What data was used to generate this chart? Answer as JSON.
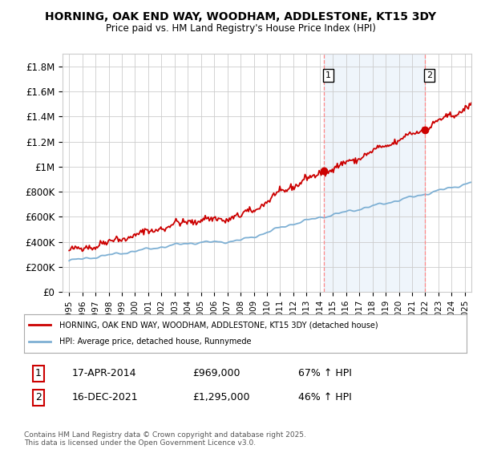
{
  "title": "HORNING, OAK END WAY, WOODHAM, ADDLESTONE, KT15 3DY",
  "subtitle": "Price paid vs. HM Land Registry's House Price Index (HPI)",
  "ylabel_ticks": [
    "£0",
    "£200K",
    "£400K",
    "£600K",
    "£800K",
    "£1M",
    "£1.2M",
    "£1.4M",
    "£1.6M",
    "£1.8M"
  ],
  "ytick_values": [
    0,
    200000,
    400000,
    600000,
    800000,
    1000000,
    1200000,
    1400000,
    1600000,
    1800000
  ],
  "ylim": [
    0,
    1900000
  ],
  "xlim_start": 1994.5,
  "xlim_end": 2025.5,
  "xtick_years": [
    1995,
    1996,
    1997,
    1998,
    1999,
    2000,
    2001,
    2002,
    2003,
    2004,
    2005,
    2006,
    2007,
    2008,
    2009,
    2010,
    2011,
    2012,
    2013,
    2014,
    2015,
    2016,
    2017,
    2018,
    2019,
    2020,
    2021,
    2022,
    2023,
    2024,
    2025
  ],
  "red_color": "#cc0000",
  "blue_color": "#7eb0d4",
  "vline1_x": 2014.29,
  "vline2_x": 2021.96,
  "marker1_x": 2014.29,
  "marker1_y": 969000,
  "marker2_x": 2021.96,
  "marker2_y": 1295000,
  "legend_label_red": "HORNING, OAK END WAY, WOODHAM, ADDLESTONE, KT15 3DY (detached house)",
  "legend_label_blue": "HPI: Average price, detached house, Runnymede",
  "annotation1_num": "1",
  "annotation1_date": "17-APR-2014",
  "annotation1_price": "£969,000",
  "annotation1_hpi": "67% ↑ HPI",
  "annotation2_num": "2",
  "annotation2_date": "16-DEC-2021",
  "annotation2_price": "£1,295,000",
  "annotation2_hpi": "46% ↑ HPI",
  "footer": "Contains HM Land Registry data © Crown copyright and database right 2025.\nThis data is licensed under the Open Government Licence v3.0.",
  "bg_color": "#ffffff",
  "grid_color": "#cccccc",
  "shade_color": "#aaccee"
}
